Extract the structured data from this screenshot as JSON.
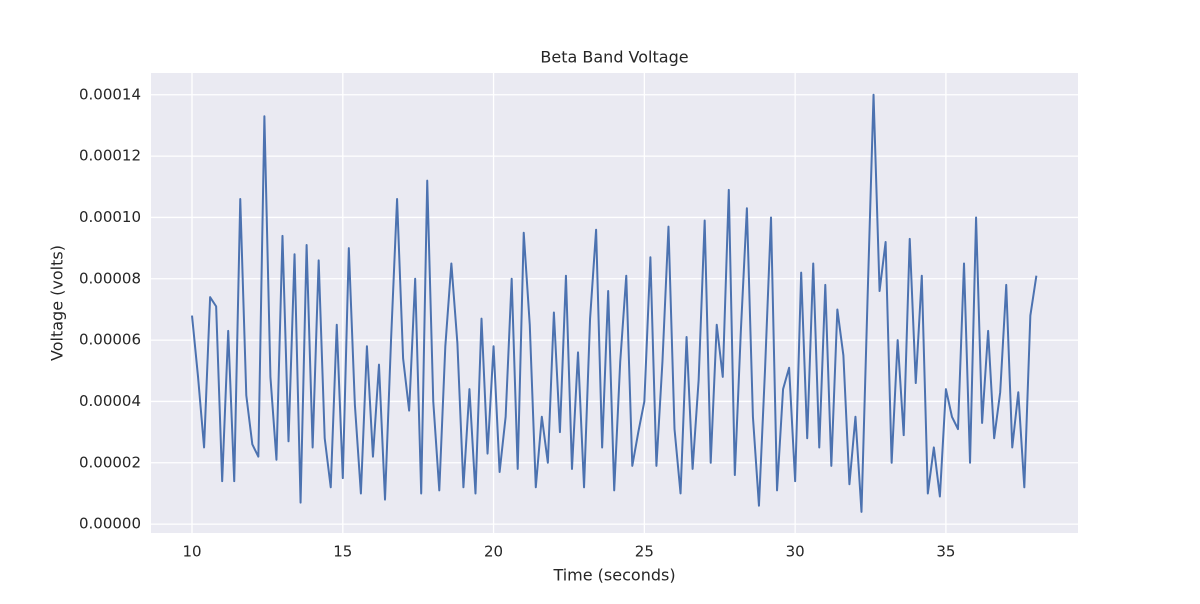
{
  "chart_data": {
    "type": "line",
    "title": "Beta Band Voltage",
    "x_label": "Time (seconds)",
    "y_label": "Voltage (volts)",
    "color": "#4c72b0",
    "grid": true,
    "xlim": [
      8.64,
      39.38
    ],
    "ylim": [
      -2.9e-06,
      0.0001471
    ],
    "xticks": [
      10,
      15,
      20,
      25,
      30,
      35
    ],
    "yticks": [
      {
        "value": 0,
        "label": "0.00000"
      },
      {
        "value": 2e-05,
        "label": "0.00002"
      },
      {
        "value": 4e-05,
        "label": "0.00004"
      },
      {
        "value": 6e-05,
        "label": "0.00006"
      },
      {
        "value": 8e-05,
        "label": "0.00008"
      },
      {
        "value": 0.0001,
        "label": "0.00010"
      },
      {
        "value": 0.00012,
        "label": "0.00012"
      },
      {
        "value": 0.00014,
        "label": "0.00014"
      }
    ],
    "x": [
      10.0,
      10.2,
      10.4,
      10.6,
      10.8,
      11.0,
      11.2,
      11.4,
      11.6,
      11.8,
      12.0,
      12.2,
      12.4,
      12.6,
      12.8,
      13.0,
      13.2,
      13.4,
      13.6,
      13.8,
      14.0,
      14.2,
      14.4,
      14.6,
      14.8,
      15.0,
      15.2,
      15.4,
      15.6,
      15.8,
      16.0,
      16.2,
      16.4,
      16.6,
      16.8,
      17.0,
      17.2,
      17.4,
      17.6,
      17.8,
      18.0,
      18.2,
      18.4,
      18.6,
      18.8,
      19.0,
      19.2,
      19.4,
      19.6,
      19.8,
      20.0,
      20.2,
      20.4,
      20.6,
      20.8,
      21.0,
      21.2,
      21.4,
      21.6,
      21.8,
      22.0,
      22.2,
      22.4,
      22.6,
      22.8,
      23.0,
      23.2,
      23.4,
      23.6,
      23.8,
      24.0,
      24.2,
      24.4,
      24.6,
      24.8,
      25.0,
      25.2,
      25.4,
      25.6,
      25.8,
      26.0,
      26.2,
      26.4,
      26.6,
      26.8,
      27.0,
      27.2,
      27.4,
      27.6,
      27.8,
      28.0,
      28.2,
      28.4,
      28.6,
      28.8,
      29.0,
      29.2,
      29.4,
      29.6,
      29.8,
      30.0,
      30.2,
      30.4,
      30.6,
      30.8,
      31.0,
      31.2,
      31.4,
      31.6,
      31.8,
      32.0,
      32.2,
      32.4,
      32.6,
      32.8,
      33.0,
      33.2,
      33.4,
      33.6,
      33.8,
      34.0,
      34.2,
      34.4,
      34.6,
      34.8,
      35.0,
      35.2,
      35.4,
      35.6,
      35.8,
      36.0,
      36.2,
      36.4,
      36.6,
      36.8,
      37.0,
      37.2,
      37.4,
      37.6,
      37.8,
      38.0
    ],
    "values": [
      6.8e-05,
      4.8e-05,
      2.5e-05,
      7.4e-05,
      7.1e-05,
      1.4e-05,
      6.3e-05,
      1.4e-05,
      0.000106,
      4.2e-05,
      2.6e-05,
      2.2e-05,
      0.000133,
      4.8e-05,
      2.1e-05,
      9.4e-05,
      2.7e-05,
      8.8e-05,
      7e-06,
      9.1e-05,
      2.5e-05,
      8.6e-05,
      2.8e-05,
      1.2e-05,
      6.5e-05,
      1.5e-05,
      9e-05,
      3.9e-05,
      1e-05,
      5.8e-05,
      2.2e-05,
      5.2e-05,
      8e-06,
      6e-05,
      0.000106,
      5.4e-05,
      3.7e-05,
      8e-05,
      1e-05,
      0.000112,
      4e-05,
      1.1e-05,
      5.8e-05,
      8.5e-05,
      5.9e-05,
      1.2e-05,
      4.4e-05,
      1e-05,
      6.7e-05,
      2.3e-05,
      5.8e-05,
      1.7e-05,
      3.5e-05,
      8e-05,
      1.8e-05,
      9.5e-05,
      6.5e-05,
      1.2e-05,
      3.5e-05,
      2e-05,
      6.9e-05,
      3e-05,
      8.1e-05,
      1.8e-05,
      5.6e-05,
      1.2e-05,
      6.7e-05,
      9.6e-05,
      2.5e-05,
      7.6e-05,
      1.1e-05,
      5.3e-05,
      8.1e-05,
      1.9e-05,
      3e-05,
      4e-05,
      8.7e-05,
      1.9e-05,
      5.3e-05,
      9.7e-05,
      3.1e-05,
      1e-05,
      6.1e-05,
      1.8e-05,
      4.7e-05,
      9.9e-05,
      2e-05,
      6.5e-05,
      4.8e-05,
      0.000109,
      1.6e-05,
      6.3e-05,
      0.000103,
      3.5e-05,
      6e-06,
      5e-05,
      0.0001,
      1.1e-05,
      4.4e-05,
      5.1e-05,
      1.4e-05,
      8.2e-05,
      2.8e-05,
      8.5e-05,
      2.5e-05,
      7.8e-05,
      1.9e-05,
      7e-05,
      5.5e-05,
      1.3e-05,
      3.5e-05,
      4e-06,
      7.3e-05,
      0.00014,
      7.6e-05,
      9.2e-05,
      2e-05,
      6e-05,
      2.9e-05,
      9.3e-05,
      4.6e-05,
      8.1e-05,
      1e-05,
      2.5e-05,
      9e-06,
      4.4e-05,
      3.5e-05,
      3.1e-05,
      8.5e-05,
      2e-05,
      0.0001,
      3.3e-05,
      6.3e-05,
      2.8e-05,
      4.3e-05,
      7.8e-05,
      2.5e-05,
      4.3e-05,
      1.2e-05,
      6.8e-05,
      8.1e-05
    ]
  }
}
